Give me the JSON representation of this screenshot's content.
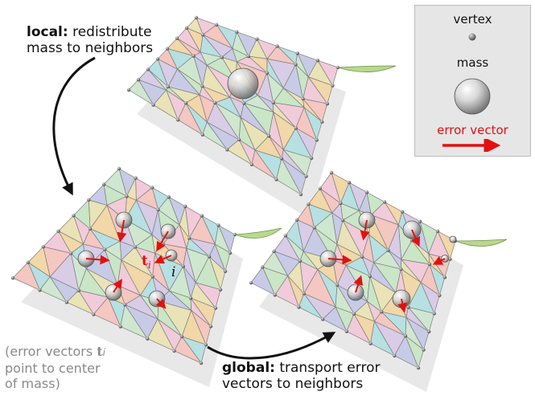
{
  "captions": {
    "local_bold": "local:",
    "local_rest_line1": " redistribute",
    "local_line2": "mass to neighbors",
    "global_bold": "global:",
    "global_rest_line1": " transport error",
    "global_line2": "vectors to neighbors",
    "note_line1_pre": "(error vectors ",
    "note_symbol": "t",
    "note_subscript": "i",
    "note_line2": "point to center",
    "note_line3": "of mass)"
  },
  "legend": {
    "vertex_label": "vertex",
    "mass_label": "mass",
    "error_vector_label": "error vector"
  },
  "annotations": {
    "t_symbol": "t",
    "t_subscript": "i",
    "i_label": "i"
  },
  "colors": {
    "error_vector": "#e31010",
    "face_palette": [
      "#f4c7c0",
      "#c9e6c6",
      "#b7e0e2",
      "#e9e3b7",
      "#d9cce6",
      "#f1cbd9",
      "#cfe7cf",
      "#f2d7a8",
      "#c7cbe6"
    ]
  }
}
